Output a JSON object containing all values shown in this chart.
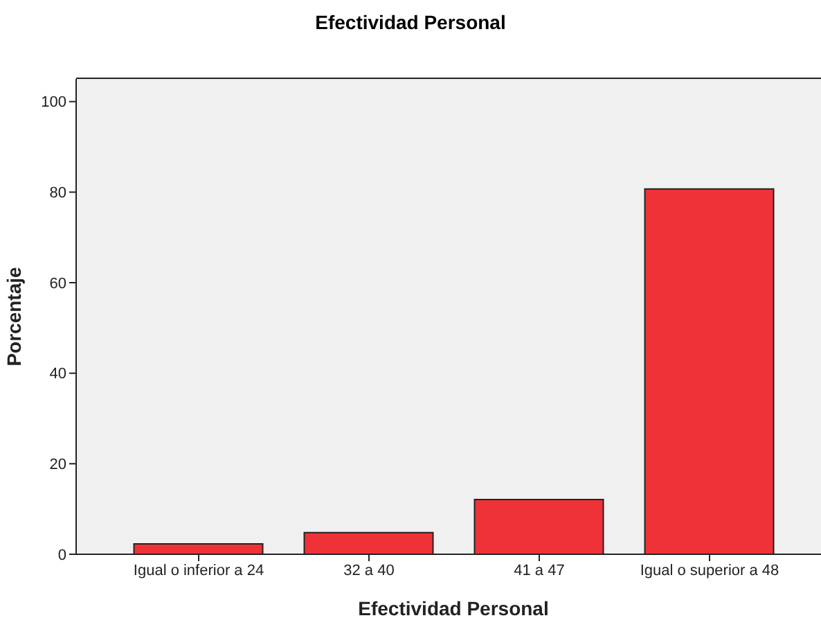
{
  "chart_data": {
    "type": "bar",
    "title": "Efectividad Personal",
    "xlabel": "Efectividad Personal",
    "ylabel": "Porcentaje",
    "categories": [
      "Igual o inferior a 24",
      "32 a 40",
      "41 a 47",
      "Igual o superior a 48"
    ],
    "values": [
      2.3,
      4.8,
      12.1,
      80.7
    ],
    "color": "#ef3238",
    "ylim": [
      0,
      105
    ],
    "yticks": [
      0,
      20,
      40,
      60,
      80,
      100
    ]
  }
}
